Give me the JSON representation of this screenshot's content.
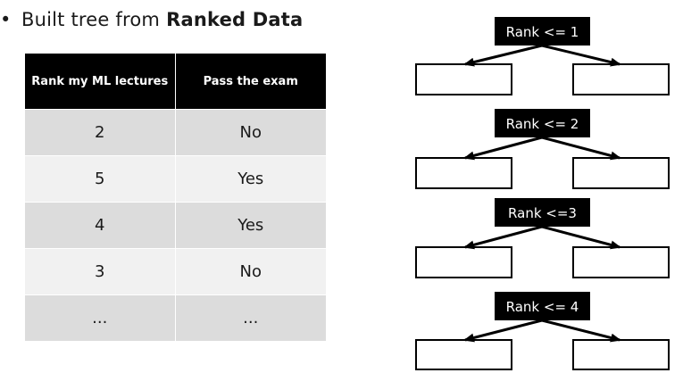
{
  "bullet": {
    "symbol": "•",
    "text": "Built tree from",
    "emphasis": "Ranked Data"
  },
  "table": {
    "headers": [
      "Rank my ML lectures",
      "Pass the exam"
    ],
    "rows": [
      [
        "2",
        "No"
      ],
      [
        "5",
        "Yes"
      ],
      [
        "4",
        "Yes"
      ],
      [
        "3",
        "No"
      ],
      [
        "...",
        "..."
      ]
    ]
  },
  "trees": [
    {
      "label": "Rank <= 1"
    },
    {
      "label": "Rank <= 2"
    },
    {
      "label": "Rank <=3"
    },
    {
      "label": "Rank <= 4"
    }
  ],
  "colors": {
    "node_fill": "#000000",
    "node_text": "#ffffff",
    "leaf_stroke": "#000000",
    "header_bg": "#000000",
    "row_dark": "#dcdcdc",
    "row_light": "#f1f1f1"
  }
}
